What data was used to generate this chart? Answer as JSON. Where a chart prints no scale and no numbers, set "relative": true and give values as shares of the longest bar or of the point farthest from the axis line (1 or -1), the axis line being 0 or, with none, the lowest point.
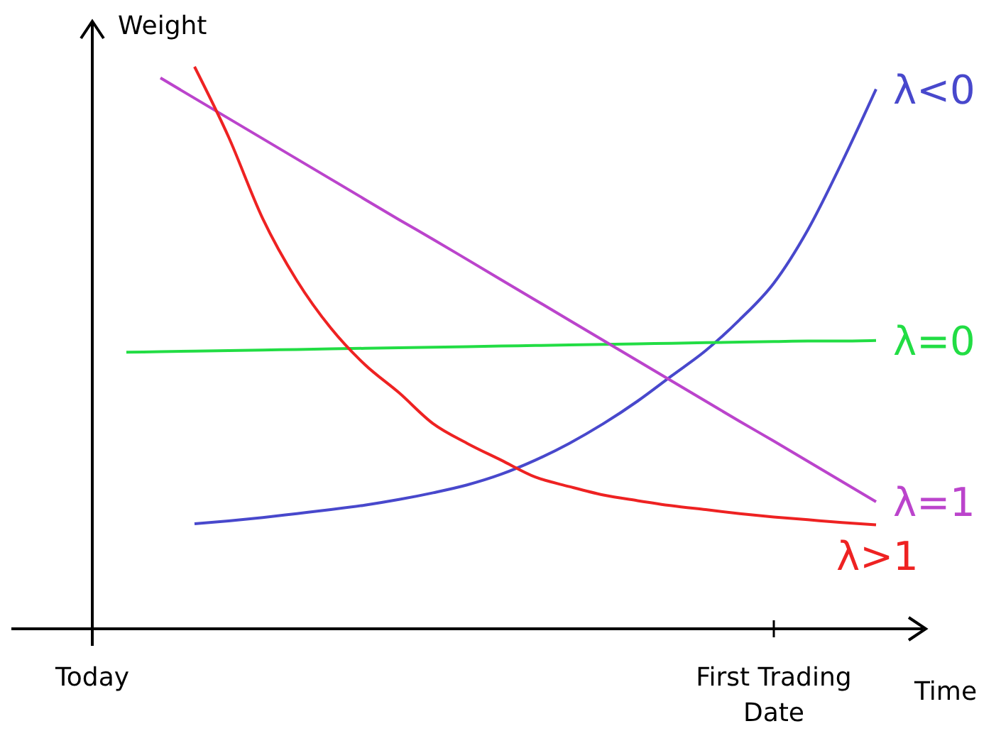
{
  "chart_data": {
    "type": "line",
    "relative": true,
    "xlabel": "Time",
    "ylabel": "Weight",
    "categories": [
      "Today",
      null,
      null,
      null,
      null,
      null,
      null,
      null,
      null,
      null,
      null,
      null,
      null,
      null,
      null,
      null,
      null,
      null,
      null,
      null,
      "First Trading Date",
      null,
      null,
      null,
      null
    ],
    "tick_labels": "x",
    "marker": "none",
    "line_style": "solid",
    "series": [
      {
        "name": "λ<0",
        "color": "#4848cc",
        "values": [
          null,
          null,
          null,
          0.187,
          0.192,
          0.198,
          0.205,
          0.212,
          0.22,
          0.23,
          0.242,
          0.256,
          0.275,
          0.3,
          0.33,
          0.365,
          0.405,
          0.45,
          0.495,
          0.55,
          0.615,
          0.71,
          0.83,
          0.96,
          null
        ]
      },
      {
        "name": "λ=0",
        "color": "#22dd44",
        "values": [
          null,
          0.492,
          0.493,
          0.494,
          0.495,
          0.496,
          0.497,
          0.498,
          0.499,
          0.5,
          0.501,
          0.502,
          0.503,
          0.504,
          0.505,
          0.506,
          0.507,
          0.508,
          0.509,
          0.51,
          0.511,
          0.512,
          0.512,
          0.513,
          null
        ]
      },
      {
        "name": "λ=1",
        "color": "#bb44cc",
        "values": [
          null,
          null,
          0.98,
          0.944,
          0.908,
          0.872,
          0.836,
          0.8,
          0.764,
          0.728,
          0.693,
          0.657,
          0.621,
          0.585,
          0.549,
          0.513,
          0.477,
          0.441,
          0.405,
          0.369,
          0.334,
          0.298,
          0.262,
          0.226,
          null
        ]
      },
      {
        "name": "λ>1",
        "color": "#ee2222",
        "values": [
          null,
          null,
          null,
          1.0,
          0.875,
          0.73,
          0.62,
          0.535,
          0.47,
          0.42,
          0.365,
          0.33,
          0.3,
          0.27,
          0.253,
          0.238,
          0.228,
          0.219,
          0.212,
          0.205,
          0.199,
          0.194,
          0.189,
          0.185,
          null
        ]
      }
    ]
  }
}
